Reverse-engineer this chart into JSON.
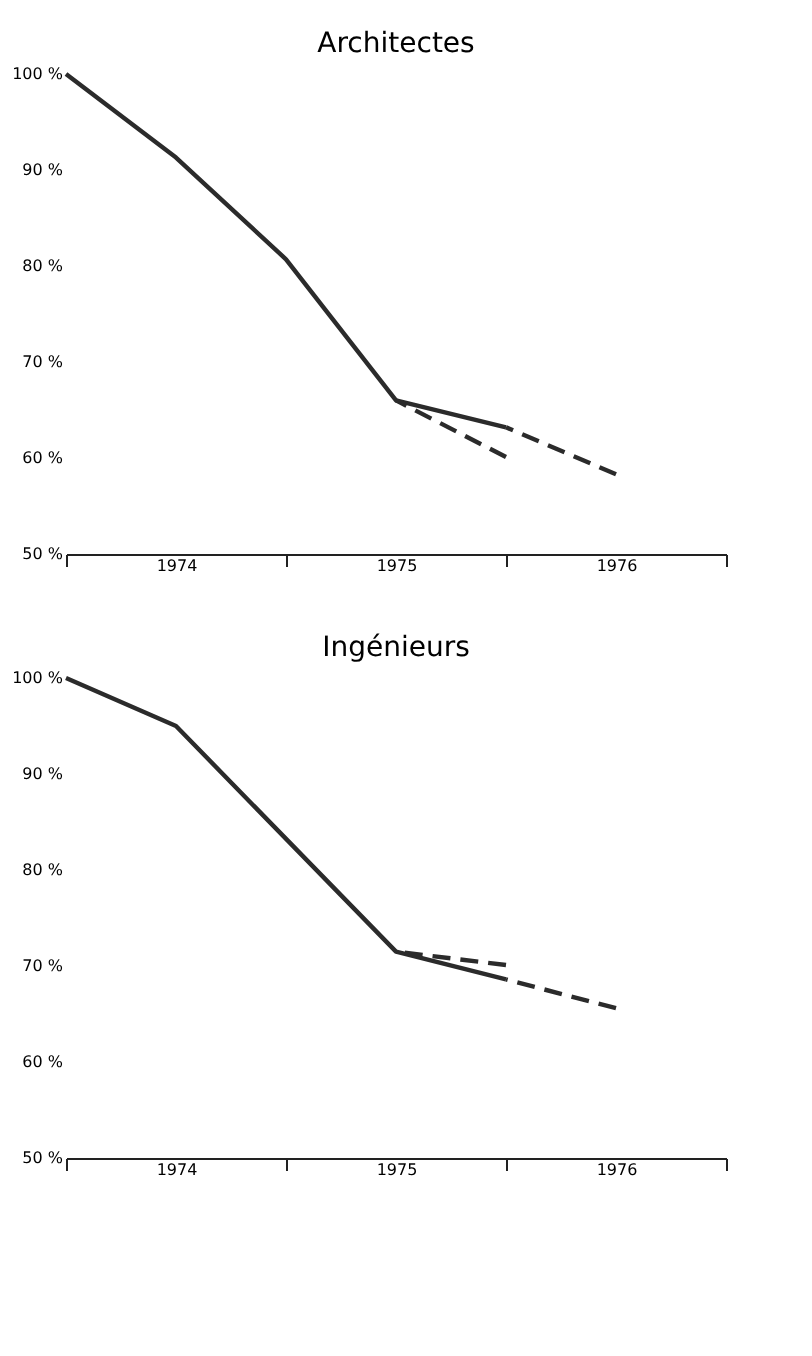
{
  "chart_data": [
    {
      "type": "line",
      "title": "Architectes",
      "xlim": [
        1974,
        1977
      ],
      "ylim": [
        50,
        100
      ],
      "xticks": [
        {
          "value": 1974,
          "label": null
        },
        {
          "value": 1974.5,
          "label": "1974"
        },
        {
          "value": 1975,
          "label": null
        },
        {
          "value": 1975.5,
          "label": "1975"
        },
        {
          "value": 1976,
          "label": null
        },
        {
          "value": 1976.5,
          "label": "1976"
        },
        {
          "value": 1977,
          "label": null
        }
      ],
      "yticks": [
        {
          "value": 50,
          "label": "50 %"
        },
        {
          "value": 60,
          "label": "60 %"
        },
        {
          "value": 70,
          "label": "70 %"
        },
        {
          "value": 80,
          "label": "80 %"
        },
        {
          "value": 90,
          "label": "90 %"
        },
        {
          "value": 100,
          "label": "100 %"
        }
      ],
      "grid": false,
      "series": [
        {
          "color": "#2b2b2b",
          "line_style": "solid",
          "x": [
            1974,
            1974.5,
            1975,
            1975.5,
            1976
          ],
          "values": [
            100,
            91.3,
            80.7,
            66,
            63.2
          ]
        },
        {
          "color": "#2b2b2b",
          "line_style": "dashed",
          "x": [
            1976,
            1976.5
          ],
          "values": [
            63.2,
            58.3
          ]
        },
        {
          "color": "#2b2b2b",
          "line_style": "dashed",
          "x": [
            1975.5,
            1976
          ],
          "values": [
            66,
            60.1
          ]
        }
      ]
    },
    {
      "type": "line",
      "title": "Ingénieurs",
      "xlim": [
        1974,
        1977
      ],
      "ylim": [
        50,
        100
      ],
      "xticks": [
        {
          "value": 1974,
          "label": null
        },
        {
          "value": 1974.5,
          "label": "1974"
        },
        {
          "value": 1975,
          "label": null
        },
        {
          "value": 1975.5,
          "label": "1975"
        },
        {
          "value": 1976,
          "label": null
        },
        {
          "value": 1976.5,
          "label": "1976"
        },
        {
          "value": 1977,
          "label": null
        }
      ],
      "yticks": [
        {
          "value": 50,
          "label": "50 %"
        },
        {
          "value": 60,
          "label": "60 %"
        },
        {
          "value": 70,
          "label": "70 %"
        },
        {
          "value": 80,
          "label": "80 %"
        },
        {
          "value": 90,
          "label": "90 %"
        },
        {
          "value": 100,
          "label": "100 %"
        }
      ],
      "grid": false,
      "series": [
        {
          "color": "#2b2b2b",
          "line_style": "solid",
          "x": [
            1974,
            1974.5,
            1975.5,
            1976
          ],
          "values": [
            100,
            95,
            71.5,
            68.6
          ]
        },
        {
          "color": "#2b2b2b",
          "line_style": "dashed",
          "x": [
            1976,
            1976.5
          ],
          "values": [
            68.6,
            65.6
          ]
        },
        {
          "color": "#2b2b2b",
          "line_style": "dashed",
          "x": [
            1975.5,
            1976
          ],
          "values": [
            71.5,
            70.1
          ]
        }
      ]
    }
  ]
}
